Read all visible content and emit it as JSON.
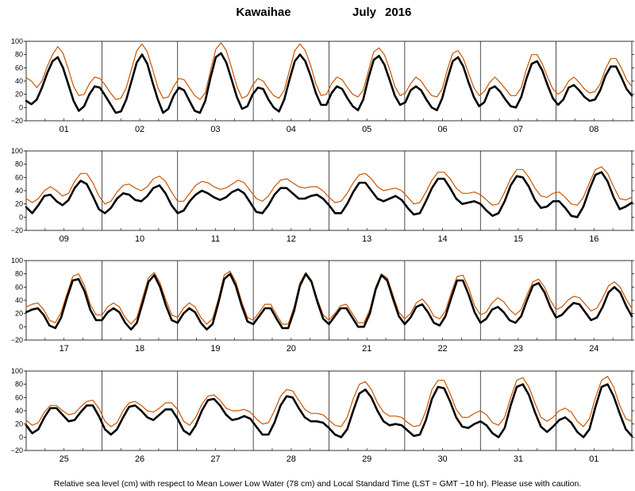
{
  "title": {
    "station": "Kawaihae",
    "month": "July",
    "year": "2016"
  },
  "footer": "Relative sea level (cm) with respect to Mean Lower Low Water (78 cm) and Local Standard Time (LST = GMT −10 hr). Please use with caution.",
  "colors": {
    "observed": "#000000",
    "predicted": "#cc5500",
    "grid": "#000000"
  },
  "chart_data": {
    "type": "line",
    "ylim": [
      -20,
      100
    ],
    "yticks": [
      "−20",
      "0",
      "20",
      "40",
      "60",
      "80",
      "100"
    ],
    "panels": [
      {
        "days": [
          "01",
          "02",
          "03",
          "04",
          "05",
          "06",
          "07",
          "08"
        ],
        "series": [
          {
            "values": [
              10,
              5,
              12,
              30,
              52,
              70,
              76,
              60,
              35,
              10,
              -5,
              2,
              20,
              32,
              30,
              18,
              5,
              -8,
              -6,
              12,
              40,
              68,
              80,
              66,
              38,
              12,
              -8,
              -2,
              18,
              30,
              26,
              10,
              -5,
              -8,
              10,
              45,
              76,
              82,
              68,
              42,
              16,
              -2,
              2,
              20,
              30,
              28,
              12,
              0,
              -6,
              12,
              42,
              70,
              80,
              70,
              48,
              22,
              4,
              4,
              22,
              32,
              28,
              14,
              2,
              -4,
              12,
              45,
              72,
              78,
              65,
              42,
              18,
              4,
              8,
              26,
              32,
              26,
              12,
              0,
              -4,
              14,
              44,
              70,
              76,
              62,
              38,
              16,
              2,
              8,
              28,
              32,
              24,
              12,
              2,
              0,
              16,
              44,
              66,
              70,
              56,
              34,
              14,
              4,
              12,
              30,
              34,
              26,
              16,
              10,
              12,
              26,
              48,
              62,
              62,
              46,
              28,
              18
            ]
          },
          {
            "values": [
              45,
              40,
              30,
              40,
              62,
              80,
              92,
              82,
              58,
              32,
              18,
              20,
              36,
              46,
              44,
              34,
              22,
              12,
              14,
              30,
              58,
              86,
              96,
              84,
              58,
              30,
              14,
              16,
              32,
              44,
              42,
              30,
              18,
              12,
              22,
              56,
              88,
              98,
              86,
              60,
              32,
              14,
              18,
              34,
              44,
              40,
              28,
              18,
              14,
              26,
              56,
              86,
              96,
              86,
              64,
              36,
              18,
              20,
              36,
              46,
              42,
              30,
              20,
              16,
              26,
              56,
              84,
              90,
              80,
              58,
              32,
              18,
              22,
              36,
              46,
              40,
              28,
              18,
              16,
              28,
              58,
              82,
              86,
              74,
              52,
              30,
              18,
              24,
              38,
              46,
              38,
              28,
              18,
              18,
              30,
              58,
              80,
              80,
              66,
              46,
              28,
              20,
              26,
              40,
              46,
              38,
              28,
              22,
              24,
              36,
              58,
              74,
              74,
              60,
              42,
              32
            ]
          }
        ]
      },
      {
        "days": [
          "09",
          "10",
          "11",
          "12",
          "13",
          "14",
          "15",
          "16"
        ],
        "series": [
          {
            "values": [
              15,
              6,
              18,
              32,
              34,
              24,
              18,
              26,
              44,
              55,
              50,
              32,
              12,
              6,
              14,
              28,
              36,
              34,
              26,
              24,
              32,
              44,
              48,
              36,
              18,
              6,
              10,
              24,
              34,
              40,
              36,
              30,
              26,
              30,
              38,
              42,
              36,
              22,
              8,
              6,
              18,
              34,
              44,
              44,
              36,
              28,
              28,
              32,
              34,
              28,
              18,
              6,
              6,
              20,
              38,
              52,
              52,
              40,
              28,
              24,
              28,
              32,
              26,
              14,
              4,
              6,
              24,
              44,
              58,
              58,
              44,
              28,
              20,
              22,
              24,
              20,
              10,
              2,
              6,
              24,
              48,
              62,
              60,
              46,
              26,
              14,
              16,
              24,
              24,
              14,
              2,
              0,
              16,
              42,
              64,
              68,
              54,
              30,
              12,
              16,
              22
            ]
          },
          {
            "values": [
              28,
              22,
              28,
              40,
              46,
              40,
              32,
              36,
              54,
              66,
              66,
              52,
              32,
              20,
              24,
              38,
              48,
              50,
              44,
              40,
              46,
              58,
              62,
              54,
              38,
              24,
              24,
              36,
              48,
              54,
              52,
              46,
              42,
              44,
              50,
              56,
              52,
              40,
              28,
              24,
              32,
              46,
              56,
              58,
              52,
              46,
              44,
              46,
              46,
              40,
              30,
              22,
              24,
              36,
              52,
              64,
              66,
              58,
              46,
              40,
              42,
              44,
              40,
              30,
              20,
              22,
              38,
              56,
              68,
              68,
              58,
              44,
              36,
              36,
              38,
              34,
              26,
              18,
              20,
              38,
              58,
              72,
              72,
              60,
              44,
              32,
              30,
              36,
              38,
              30,
              20,
              18,
              30,
              52,
              72,
              76,
              66,
              46,
              28,
              26,
              30
            ]
          }
        ]
      },
      {
        "days": [
          "17",
          "18",
          "19",
          "20",
          "21",
          "22",
          "23",
          "24"
        ],
        "series": [
          {
            "values": [
              22,
              26,
              28,
              18,
              2,
              -2,
              14,
              44,
              70,
              72,
              54,
              26,
              10,
              10,
              22,
              28,
              22,
              6,
              -4,
              6,
              36,
              68,
              78,
              60,
              32,
              10,
              6,
              20,
              28,
              22,
              6,
              -4,
              4,
              36,
              72,
              80,
              62,
              32,
              8,
              4,
              16,
              28,
              28,
              12,
              -2,
              -2,
              24,
              62,
              80,
              68,
              38,
              12,
              4,
              16,
              28,
              28,
              14,
              0,
              0,
              20,
              56,
              78,
              70,
              42,
              16,
              4,
              14,
              30,
              34,
              22,
              6,
              2,
              16,
              44,
              70,
              70,
              48,
              22,
              6,
              12,
              26,
              30,
              22,
              10,
              6,
              16,
              40,
              62,
              66,
              52,
              30,
              14,
              18,
              28,
              36,
              34,
              22,
              10,
              14,
              30,
              52,
              60,
              52,
              32,
              16
            ]
          },
          {
            "values": [
              30,
              34,
              36,
              26,
              10,
              6,
              22,
              50,
              76,
              80,
              62,
              34,
              18,
              18,
              30,
              36,
              30,
              14,
              4,
              14,
              44,
              74,
              82,
              66,
              40,
              18,
              14,
              28,
              36,
              30,
              14,
              4,
              12,
              42,
              78,
              84,
              68,
              38,
              14,
              10,
              22,
              34,
              34,
              18,
              4,
              4,
              30,
              66,
              82,
              70,
              42,
              18,
              10,
              20,
              32,
              34,
              20,
              6,
              6,
              26,
              60,
              80,
              74,
              48,
              22,
              12,
              20,
              36,
              42,
              32,
              16,
              12,
              24,
              52,
              76,
              78,
              58,
              32,
              18,
              22,
              36,
              44,
              38,
              26,
              18,
              26,
              48,
              68,
              72,
              60,
              40,
              26,
              30,
              40,
              46,
              44,
              34,
              24,
              28,
              44,
              62,
              68,
              60,
              42,
              28
            ]
          }
        ]
      },
      {
        "days": [
          "25",
          "26",
          "27",
          "28",
          "29",
          "30",
          "31",
          "01"
        ],
        "series": [
          {
            "values": [
              18,
              6,
              12,
              30,
              44,
              44,
              34,
              24,
              26,
              38,
              48,
              48,
              32,
              12,
              4,
              12,
              30,
              46,
              48,
              40,
              30,
              26,
              34,
              42,
              42,
              28,
              10,
              4,
              18,
              40,
              56,
              58,
              48,
              34,
              26,
              28,
              32,
              28,
              16,
              4,
              4,
              22,
              48,
              62,
              60,
              44,
              30,
              24,
              24,
              22,
              14,
              4,
              0,
              12,
              40,
              66,
              72,
              60,
              40,
              24,
              18,
              20,
              18,
              10,
              2,
              4,
              26,
              58,
              76,
              74,
              54,
              30,
              16,
              14,
              20,
              24,
              18,
              6,
              0,
              14,
              48,
              76,
              80,
              64,
              38,
              16,
              8,
              16,
              26,
              30,
              22,
              8,
              0,
              12,
              46,
              76,
              80,
              62,
              36,
              12,
              2
            ]
          },
          {
            "values": [
              26,
              18,
              22,
              38,
              48,
              48,
              40,
              34,
              36,
              46,
              54,
              56,
              44,
              24,
              16,
              22,
              40,
              52,
              54,
              48,
              40,
              38,
              44,
              52,
              52,
              42,
              24,
              18,
              30,
              50,
              62,
              64,
              56,
              44,
              40,
              40,
              42,
              38,
              28,
              20,
              22,
              40,
              62,
              72,
              70,
              56,
              42,
              36,
              36,
              34,
              26,
              18,
              16,
              30,
              58,
              80,
              84,
              72,
              52,
              38,
              32,
              32,
              30,
              22,
              16,
              18,
              40,
              72,
              86,
              86,
              66,
              42,
              30,
              30,
              36,
              40,
              34,
              22,
              18,
              30,
              60,
              86,
              90,
              76,
              52,
              30,
              24,
              30,
              40,
              44,
              38,
              24,
              16,
              28,
              60,
              86,
              92,
              76,
              48,
              28,
              24
            ]
          }
        ]
      }
    ]
  }
}
